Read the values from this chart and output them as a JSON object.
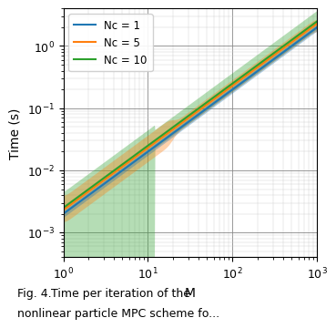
{
  "xlabel": "M",
  "ylabel": "Time (s)",
  "xlim": [
    1,
    1000
  ],
  "ylim": [
    0.0004,
    4
  ],
  "colors": {
    "nc1": "#1f77b4",
    "nc5": "#ff7f0e",
    "nc10": "#2ca02c"
  },
  "alpha_fill": 0.35,
  "legend_labels": [
    "Nc = 1",
    "Nc = 5",
    "Nc = 10"
  ],
  "caption": "Fig. 4.    Time per iteration of the\nnonlinear particle MPC scheme fo...",
  "nc1_base": 0.002,
  "nc5_base": 0.0023,
  "nc10_base": 0.0025,
  "power": 1.0,
  "nc1_band_lo": 0.88,
  "nc1_band_hi": 1.12,
  "nc5_band_lo_near": 0.6,
  "nc5_band_hi_near": 1.6,
  "nc5_band_lo_far": 0.8,
  "nc5_band_hi_far": 1.25,
  "nc5_thresh": 20,
  "nc10_thresh": 12,
  "nc10_floor": 0.0004,
  "nc10_band_hi_near": 2.0,
  "nc10_band_lo_far": 0.75,
  "nc10_band_hi_far": 1.5
}
